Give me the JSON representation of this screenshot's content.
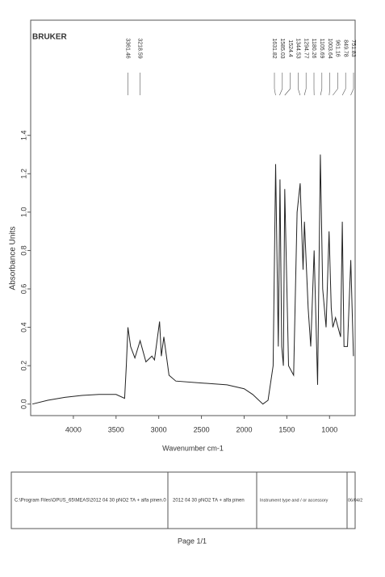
{
  "chart_data": {
    "type": "line",
    "title": "BRUKER",
    "x_label": "Wavenumber cm-1",
    "y_label": "Absorbance Units",
    "xlim": [
      4500,
      700
    ],
    "ylim": [
      -0.06,
      2.0
    ],
    "xticks": [
      4000,
      3500,
      3000,
      2500,
      2000,
      1500,
      1000
    ],
    "yticks": [
      {
        "value": 0,
        "label": "0.0"
      },
      0.2,
      0.4,
      0.6,
      0.8,
      {
        "value": 1,
        "label": "1.0"
      },
      1.2,
      1.4
    ],
    "color": "#222",
    "x": [
      4480,
      4300,
      4100,
      3900,
      3700,
      3500,
      3400,
      3380,
      3361,
      3330,
      3280,
      3218,
      3150,
      3080,
      3050,
      2990,
      2970,
      2940,
      2880,
      2800,
      2500,
      2200,
      2000,
      1900,
      1780,
      1720,
      1660,
      1631,
      1600,
      1580,
      1560,
      1540,
      1524,
      1480,
      1420,
      1380,
      1344,
      1310,
      1294,
      1250,
      1220,
      1180,
      1140,
      1107,
      1080,
      1040,
      1005,
      980,
      961,
      930,
      900,
      870,
      850,
      830,
      790,
      751,
      720
    ],
    "values": [
      0.0,
      0.02,
      0.035,
      0.045,
      0.05,
      0.05,
      0.03,
      0.2,
      0.4,
      0.3,
      0.24,
      0.33,
      0.22,
      0.25,
      0.23,
      0.43,
      0.25,
      0.35,
      0.15,
      0.12,
      0.11,
      0.1,
      0.08,
      0.05,
      0.0,
      0.02,
      0.2,
      1.25,
      0.3,
      1.17,
      0.3,
      0.2,
      1.12,
      0.2,
      0.15,
      1.0,
      1.15,
      0.7,
      0.95,
      0.5,
      0.3,
      0.8,
      0.1,
      1.3,
      0.6,
      0.4,
      0.9,
      0.5,
      0.4,
      0.45,
      0.4,
      0.35,
      0.95,
      0.3,
      0.3,
      0.75,
      0.25
    ],
    "peaks": [
      3361.46,
      3218.59,
      1631.82,
      1585.03,
      1524.4,
      1344.53,
      1294.77,
      1180.26,
      1105.69,
      1003.64,
      961.16,
      849.78,
      751.83
    ]
  },
  "footer": {
    "cells": [
      "C:\\Program Files\\OPUS_65\\MEAS\\2012 04 30 pNO2 TA + alfa pinen.0",
      "2012 04 30 pNO2 TA + alfa pinen",
      "Instrument type and / or accessory",
      "06/04/2"
    ],
    "page": "Page 1/1"
  }
}
